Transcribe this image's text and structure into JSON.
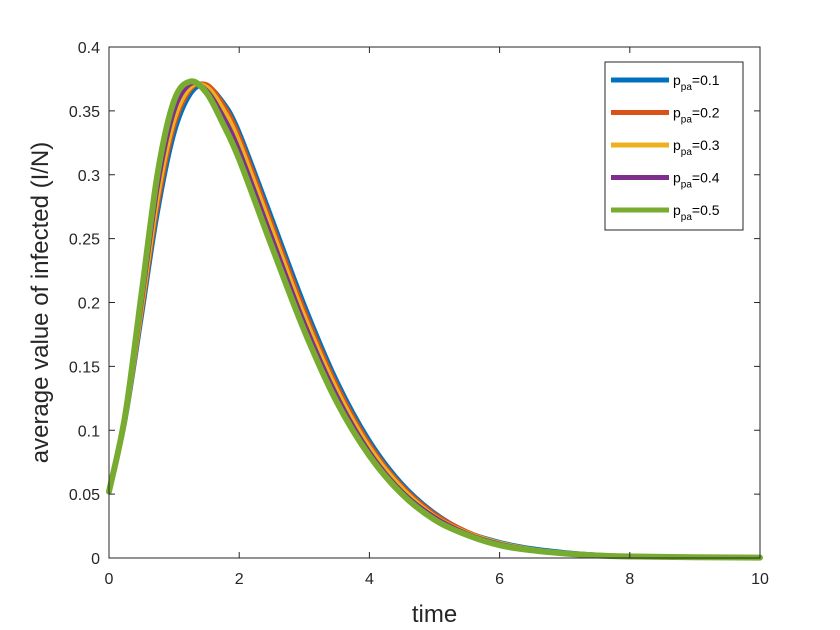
{
  "chart_data": {
    "type": "line",
    "xlabel": "time",
    "ylabel": "average value of infected (I/N)",
    "xlim": [
      0,
      10
    ],
    "ylim": [
      0,
      0.4
    ],
    "x_ticks": [
      "0",
      "2",
      "4",
      "6",
      "8",
      "10"
    ],
    "y_ticks": [
      "0",
      "0.05",
      "0.1",
      "0.15",
      "0.2",
      "0.25",
      "0.3",
      "0.35",
      "0.4"
    ],
    "legend_position": "top-right",
    "grid": false,
    "x": [
      0,
      0.25,
      0.5,
      0.75,
      1.0,
      1.25,
      1.5,
      1.75,
      2.0,
      2.5,
      3.0,
      3.5,
      4.0,
      4.5,
      5.0,
      5.5,
      6.0,
      6.5,
      7.0,
      7.5,
      8.0,
      9.0,
      10.0
    ],
    "series": [
      {
        "name": "p_pa=0.1",
        "legend_base": "p",
        "legend_sub": "pa",
        "legend_suffix": "=0.1",
        "color": "#0072BD",
        "values": [
          0.052,
          0.105,
          0.185,
          0.268,
          0.33,
          0.362,
          0.37,
          0.358,
          0.335,
          0.268,
          0.2,
          0.14,
          0.093,
          0.059,
          0.036,
          0.021,
          0.013,
          0.008,
          0.005,
          0.003,
          0.002,
          0.001,
          0.0005
        ]
      },
      {
        "name": "p_pa=0.2",
        "legend_base": "p",
        "legend_sub": "pa",
        "legend_suffix": "=0.2",
        "color": "#D95319",
        "values": [
          0.052,
          0.107,
          0.19,
          0.275,
          0.337,
          0.366,
          0.371,
          0.356,
          0.331,
          0.263,
          0.195,
          0.136,
          0.09,
          0.057,
          0.035,
          0.021,
          0.012,
          0.007,
          0.004,
          0.0025,
          0.0015,
          0.0008,
          0.0004
        ]
      },
      {
        "name": "p_pa=0.3",
        "legend_base": "p",
        "legend_sub": "pa",
        "legend_suffix": "=0.3",
        "color": "#EDB120",
        "values": [
          0.052,
          0.108,
          0.194,
          0.282,
          0.342,
          0.368,
          0.369,
          0.352,
          0.326,
          0.258,
          0.19,
          0.132,
          0.087,
          0.055,
          0.033,
          0.02,
          0.012,
          0.007,
          0.004,
          0.0025,
          0.0015,
          0.0008,
          0.0004
        ]
      },
      {
        "name": "p_pa=0.4",
        "legend_base": "p",
        "legend_sub": "pa",
        "legend_suffix": "=0.4",
        "color": "#7E2F8E",
        "values": [
          0.052,
          0.11,
          0.2,
          0.292,
          0.35,
          0.371,
          0.366,
          0.346,
          0.319,
          0.251,
          0.184,
          0.127,
          0.083,
          0.052,
          0.032,
          0.019,
          0.011,
          0.0065,
          0.0038,
          0.0022,
          0.0013,
          0.0007,
          0.0004
        ]
      },
      {
        "name": "p_pa=0.5",
        "legend_base": "p",
        "legend_sub": "pa",
        "legend_suffix": "=0.5",
        "color": "#77AC30",
        "values": [
          0.052,
          0.112,
          0.207,
          0.302,
          0.358,
          0.373,
          0.364,
          0.34,
          0.312,
          0.244,
          0.178,
          0.122,
          0.08,
          0.05,
          0.03,
          0.018,
          0.01,
          0.006,
          0.0035,
          0.002,
          0.0012,
          0.0006,
          0.0003
        ]
      }
    ]
  }
}
